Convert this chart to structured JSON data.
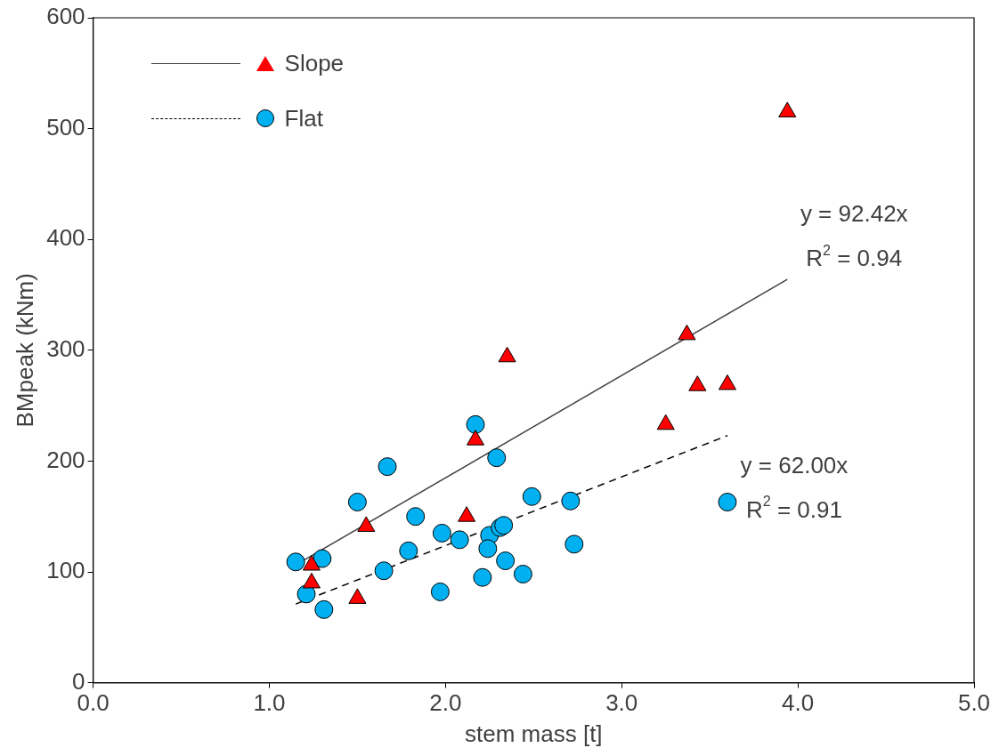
{
  "chart_data": {
    "type": "scatter",
    "xlabel": "stem mass [t]",
    "ylabel": "BMpeak (kNm)",
    "xlim": [
      0,
      5
    ],
    "xticks": [
      {
        "value": 0,
        "label": "0.0"
      },
      {
        "value": 1,
        "label": "1.0"
      },
      {
        "value": 2,
        "label": "2.0"
      },
      {
        "value": 3,
        "label": "3.0"
      },
      {
        "value": 4,
        "label": "4.0"
      },
      {
        "value": 5,
        "label": "5.0"
      }
    ],
    "ylim": [
      0,
      600
    ],
    "yticks": [
      0,
      100,
      200,
      300,
      400,
      500,
      600
    ],
    "grid": false,
    "legend": "top left",
    "series": [
      {
        "name": "Slope",
        "type": "scatter",
        "marker": "triangle",
        "color": "#ff0000",
        "x": [
          1.24,
          1.24,
          1.5,
          1.55,
          2.12,
          2.17,
          2.35,
          3.25,
          3.37,
          3.43,
          3.6,
          3.94
        ],
        "values": [
          106,
          90,
          76,
          141,
          150,
          219,
          294,
          233,
          314,
          268,
          269,
          515
        ]
      },
      {
        "name": "Flat",
        "type": "scatter",
        "marker": "circle",
        "color": "#00b0f0",
        "x": [
          1.15,
          1.21,
          1.3,
          1.31,
          1.5,
          1.65,
          1.67,
          1.83,
          1.79,
          1.97,
          1.98,
          2.08,
          2.17,
          2.21,
          2.25,
          2.24,
          2.29,
          2.31,
          2.33,
          2.34,
          2.44,
          2.49,
          2.71,
          2.73,
          3.6
        ],
        "values": [
          109,
          80,
          112,
          66,
          163,
          101,
          195,
          150,
          119,
          82,
          135,
          129,
          233,
          95,
          133,
          121,
          203,
          140,
          142,
          110,
          98,
          168,
          164,
          125,
          163
        ]
      },
      {
        "type": "line",
        "line_style": "solid",
        "marker": "none",
        "color": "#404040",
        "x": [
          1.2,
          3.94
        ],
        "values": [
          111,
          364
        ]
      },
      {
        "type": "line",
        "line_style": "dashed",
        "marker": "none",
        "color": "#000000",
        "x": [
          1.15,
          3.6
        ],
        "values": [
          71,
          223
        ]
      }
    ],
    "annotations": [
      "y = 92.42x",
      "R$^{2}$ = 0.94",
      "y = 62.00x",
      "R$^{2}$ = 0.91"
    ]
  }
}
